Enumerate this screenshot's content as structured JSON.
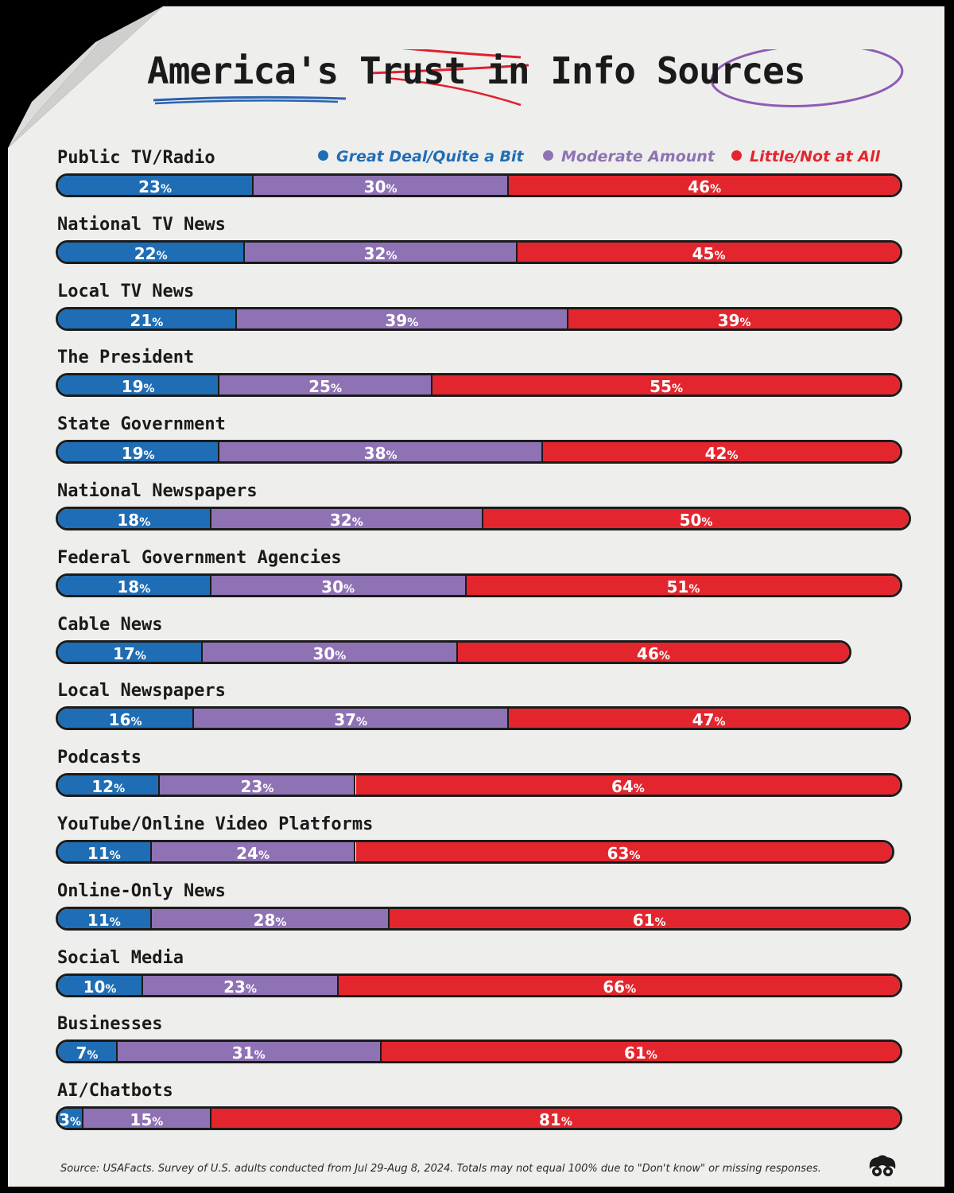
{
  "chart_data": {
    "type": "bar",
    "title": "America's Trust in Info Sources",
    "legend": [
      "Great Deal/Quite a Bit",
      "Moderate Amount",
      "Little/Not at All"
    ],
    "colors": {
      "great": "#1f6db5",
      "moderate": "#8e72b4",
      "little": "#e3262e"
    },
    "categories": [
      "Public TV/Radio",
      "National TV News",
      "Local TV News",
      "The President",
      "State Government",
      "National Newspapers",
      "Federal Government Agencies",
      "Cable News",
      "Local Newspapers",
      "Podcasts",
      "YouTube/Online Video Platforms",
      "Online-Only News",
      "Social Media",
      "Businesses",
      "AI/Chatbots"
    ],
    "series": [
      {
        "name": "Great Deal/Quite a Bit",
        "values": [
          23,
          22,
          21,
          19,
          19,
          18,
          18,
          17,
          16,
          12,
          11,
          11,
          10,
          7,
          3
        ]
      },
      {
        "name": "Moderate Amount",
        "values": [
          30,
          32,
          39,
          25,
          38,
          32,
          30,
          30,
          37,
          23,
          24,
          28,
          23,
          31,
          15
        ]
      },
      {
        "name": "Little/Not at All",
        "values": [
          46,
          45,
          39,
          55,
          42,
          50,
          51,
          46,
          47,
          64,
          63,
          61,
          66,
          61,
          81
        ]
      }
    ],
    "unit": "%",
    "legend_position": "top-right",
    "grid": false
  },
  "title": {
    "part1": "America's ",
    "part2": "Trust",
    "part3": " in Info ",
    "part4": "Sources"
  },
  "source": "Source: USAFacts. Survey of U.S. adults conducted from Jul 29-Aug 8, 2024. Totals may not equal 100% due to \"Don't know\" or missing responses."
}
